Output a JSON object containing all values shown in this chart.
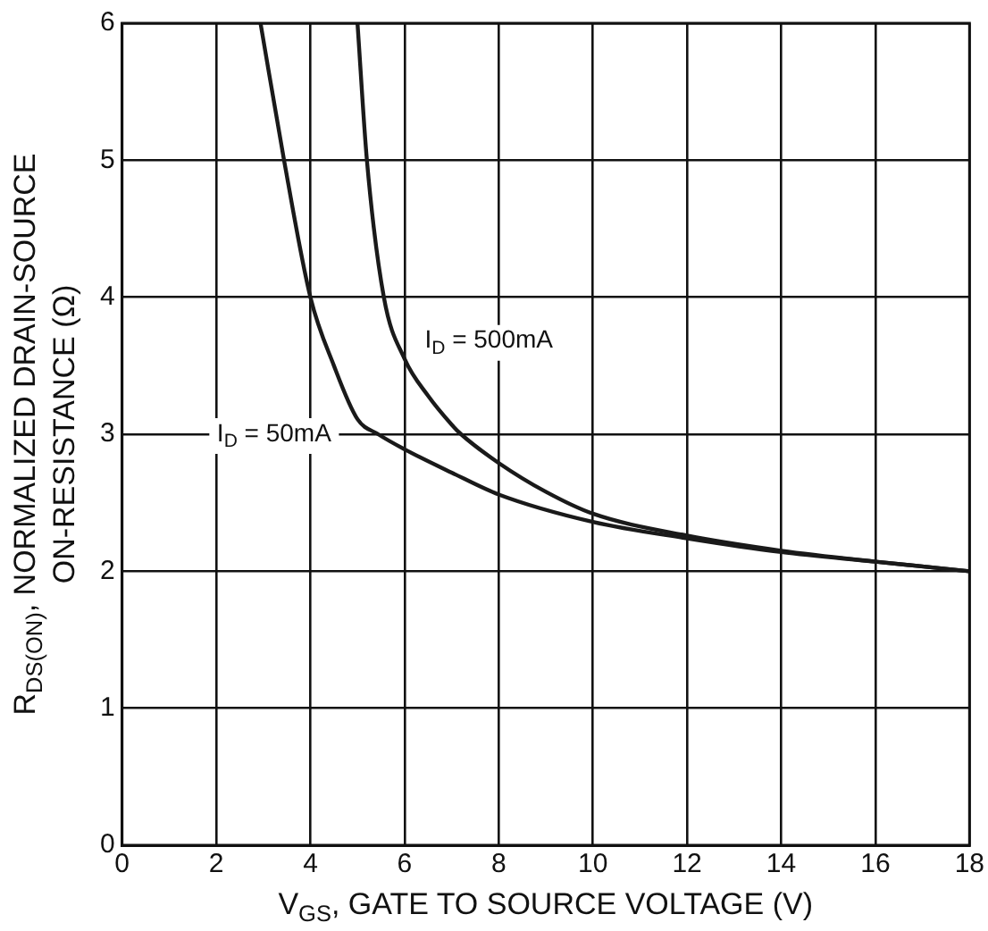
{
  "chart_data": {
    "type": "line",
    "xlabel": "V$_{GS}$, GATE TO SOURCE VOLTAGE (V)",
    "ylabel": "R$_{DS(ON)}$, NORMALIZED DRAIN-SOURCE\nON-RESISTANCE (Ω)",
    "series": [
      {
        "name": "I$_{D}$ = 50mA",
        "color": "#1a1a1a",
        "x": [
          2.94,
          3.44,
          4,
          4.5,
          5,
          5.44,
          6,
          7,
          8,
          10,
          12,
          14,
          16,
          18
        ],
        "values": [
          6,
          5,
          4,
          3.5,
          3.11,
          3,
          2.89,
          2.72,
          2.56,
          2.36,
          2.24,
          2.14,
          2.07,
          2
        ]
      },
      {
        "name": "I$_{D}$ = 500mA",
        "color": "#1a1a1a",
        "x": [
          5,
          5.2,
          5.56,
          6,
          6.5,
          7,
          7.2,
          8,
          9,
          10,
          12,
          14,
          16,
          18
        ],
        "values": [
          6,
          5,
          4,
          3.55,
          3.28,
          3.07,
          3,
          2.79,
          2.58,
          2.42,
          2.26,
          2.15,
          2.07,
          2
        ]
      }
    ],
    "xlim": [
      0,
      18
    ],
    "xticks": [
      0,
      2,
      4,
      6,
      8,
      10,
      12,
      14,
      16,
      18
    ],
    "ylim": [
      0,
      6
    ],
    "yticks": [
      0,
      1,
      2,
      3,
      4,
      5,
      6
    ],
    "grid": true,
    "legend": false,
    "marker": "none",
    "line_style": "solid"
  }
}
